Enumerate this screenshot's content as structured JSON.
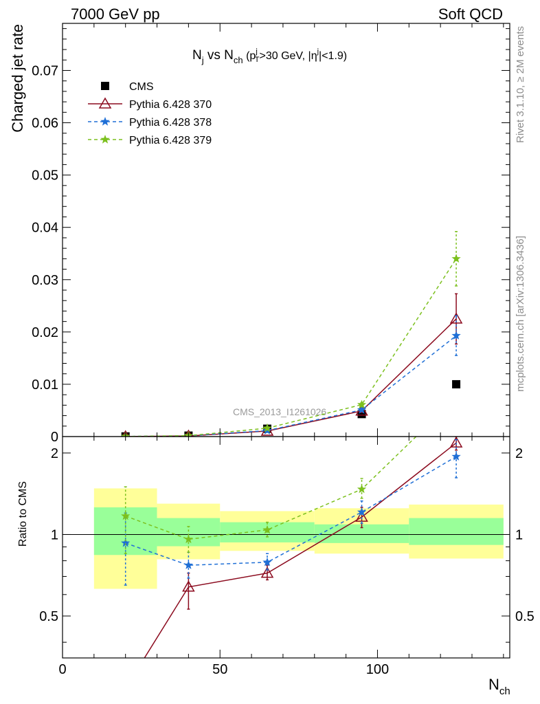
{
  "header": {
    "left": "7000 GeV pp",
    "right": "Soft QCD"
  },
  "title": {
    "n": "N",
    "nsub": "j",
    "vs": " vs N",
    "chsub": "ch",
    "open": " (p",
    "ptsup": "j",
    "ptsub": "T",
    "cut1": ">30 GeV, |",
    "eta": "η",
    "etasup": "j",
    "cut2": "|<1.9)"
  },
  "side_labels": {
    "rivet": "Rivet 3.1.10, ≥ 2M events",
    "mcplots": "mcplots.cern.ch [arXiv:1306.3436]"
  },
  "watermark": "CMS_2013_I1261026",
  "colors": {
    "cms": "#000000",
    "p370": "#8b0a1e",
    "p378": "#1f6fd6",
    "p379": "#7cc01e",
    "band_inner": "#99ff99",
    "band_outer": "#ffff99"
  },
  "chart_data": [
    {
      "type": "line",
      "panel": "main",
      "ylabel": "Charged jet rate",
      "xlim": [
        0,
        142
      ],
      "ylim": [
        0,
        0.079
      ],
      "yticks": [
        0,
        0.01,
        0.02,
        0.03,
        0.04,
        0.05,
        0.06,
        0.07
      ],
      "ytick_labels": [
        "0",
        "0.01",
        "0.02",
        "0.03",
        "0.04",
        "0.05",
        "0.06",
        "0.07"
      ],
      "legend_position": "top-left",
      "series": [
        {
          "name": "CMS",
          "key": "cms",
          "x": [
            20,
            40,
            65,
            95,
            125
          ],
          "y": [
            3e-05,
            0.00018,
            0.0015,
            0.0043,
            0.01
          ],
          "err": [
            0,
            0,
            0,
            0,
            0
          ]
        },
        {
          "name": "Pythia 6.428 370",
          "key": "p370",
          "x": [
            20,
            40,
            65,
            95,
            125
          ],
          "y": [
            0.0,
            0.00012,
            0.00105,
            0.0049,
            0.0225
          ],
          "err": [
            0,
            0,
            0,
            0.0003,
            0.0048
          ]
        },
        {
          "name": "Pythia 6.428 378",
          "key": "p378",
          "x": [
            20,
            40,
            65,
            95,
            125
          ],
          "y": [
            3e-05,
            0.00014,
            0.00115,
            0.0051,
            0.0193
          ],
          "err": [
            0,
            0,
            0,
            0.0003,
            0.0038
          ]
        },
        {
          "name": "Pythia 6.428 379",
          "key": "p379",
          "x": [
            20,
            40,
            65,
            95,
            125
          ],
          "y": [
            3e-05,
            0.00017,
            0.0016,
            0.0061,
            0.034
          ],
          "err": [
            0,
            0,
            0,
            0.0004,
            0.0052
          ]
        }
      ]
    },
    {
      "type": "line",
      "panel": "ratio",
      "ylabel": "Ratio to CMS",
      "xlabel_main": "N",
      "xlabel_sub": "ch",
      "xlim": [
        0,
        142
      ],
      "ylim": [
        0.35,
        2.3
      ],
      "yscale": "log",
      "yticks": [
        0.5,
        1,
        2
      ],
      "ytick_labels": [
        "0.5",
        "1",
        "2"
      ],
      "xticks": [
        0,
        50,
        100
      ],
      "xtick_labels": [
        "0",
        "50",
        "100"
      ],
      "bands": [
        {
          "x0": 10,
          "x1": 30,
          "inner": [
            0.84,
            1.26
          ],
          "outer": [
            0.63,
            1.48
          ]
        },
        {
          "x0": 30,
          "x1": 50,
          "inner": [
            0.905,
            1.15
          ],
          "outer": [
            0.81,
            1.3
          ]
        },
        {
          "x0": 50,
          "x1": 80,
          "inner": [
            0.935,
            1.11
          ],
          "outer": [
            0.87,
            1.22
          ]
        },
        {
          "x0": 80,
          "x1": 110,
          "inner": [
            0.93,
            1.09
          ],
          "outer": [
            0.85,
            1.25
          ]
        },
        {
          "x0": 110,
          "x1": 140,
          "inner": [
            0.915,
            1.15
          ],
          "outer": [
            0.815,
            1.29
          ]
        }
      ],
      "series": [
        {
          "name": "Pythia 6.428 370",
          "key": "p370",
          "x": [
            20,
            40,
            65,
            95,
            125
          ],
          "y": [
            0.27,
            0.64,
            0.72,
            1.16,
            2.18
          ],
          "lo": [
            0,
            0.53,
            0.68,
            1.06,
            2.05
          ],
          "hi": [
            0,
            0.72,
            0.77,
            1.26,
            2.3
          ]
        },
        {
          "name": "Pythia 6.428 378",
          "key": "p378",
          "x": [
            20,
            40,
            65,
            95,
            125
          ],
          "y": [
            0.93,
            0.77,
            0.79,
            1.21,
            1.94
          ],
          "lo": [
            0.65,
            0.69,
            0.74,
            1.1,
            1.62
          ],
          "hi": [
            1.2,
            0.86,
            0.85,
            1.33,
            2.24
          ]
        },
        {
          "name": "Pythia 6.428 379",
          "key": "p379",
          "x": [
            20,
            40,
            65,
            95,
            125
          ],
          "y": [
            1.17,
            0.96,
            1.04,
            1.47,
            3.2
          ],
          "lo": [
            0.85,
            0.86,
            0.98,
            1.36,
            3.0
          ],
          "hi": [
            1.5,
            1.07,
            1.11,
            1.61,
            3.4
          ]
        }
      ]
    }
  ]
}
